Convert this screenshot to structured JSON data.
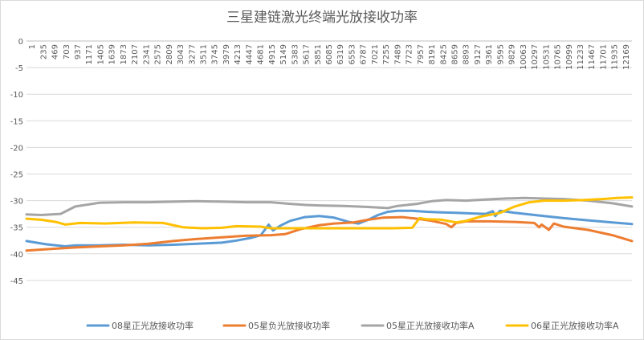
{
  "chart_data": {
    "type": "line",
    "title": "三星建链激光终端光放接收功率",
    "xlabel": "",
    "ylabel": "",
    "ylim": [
      -50,
      0
    ],
    "yticks": [
      0,
      -5,
      -10,
      -15,
      -20,
      -25,
      -30,
      -35,
      -40,
      -45
    ],
    "x_range": [
      1,
      12400
    ],
    "x_tick_labels": [
      "1",
      "235",
      "469",
      "703",
      "937",
      "1171",
      "1405",
      "1639",
      "1873",
      "2107",
      "2341",
      "2575",
      "2809",
      "3043",
      "3277",
      "3511",
      "3745",
      "3979",
      "4213",
      "4447",
      "4681",
      "4915",
      "5149",
      "5383",
      "5617",
      "5851",
      "6085",
      "6319",
      "6553",
      "6787",
      "7021",
      "7255",
      "7489",
      "7723",
      "7957",
      "8191",
      "8425",
      "8659",
      "8893",
      "9127",
      "9361",
      "9595",
      "9829",
      "10063",
      "10297",
      "10531",
      "10765",
      "10999",
      "11233",
      "11467",
      "11701",
      "11935",
      "12169"
    ],
    "x_axis_position": "top",
    "legend_position": "bottom",
    "grid": true,
    "series": [
      {
        "name": "08星正光放接收功率",
        "color": "#5b9bd5",
        "points": [
          [
            1,
            -37.6
          ],
          [
            400,
            -38.2
          ],
          [
            800,
            -38.6
          ],
          [
            1000,
            -38.4
          ],
          [
            1500,
            -38.4
          ],
          [
            2000,
            -38.3
          ],
          [
            2500,
            -38.4
          ],
          [
            3000,
            -38.3
          ],
          [
            3500,
            -38.1
          ],
          [
            4000,
            -37.9
          ],
          [
            4300,
            -37.5
          ],
          [
            4600,
            -37.0
          ],
          [
            4800,
            -36.5
          ],
          [
            4960,
            -34.5
          ],
          [
            5050,
            -35.6
          ],
          [
            5200,
            -34.7
          ],
          [
            5400,
            -33.8
          ],
          [
            5700,
            -33.1
          ],
          [
            6000,
            -32.9
          ],
          [
            6300,
            -33.2
          ],
          [
            6600,
            -34.0
          ],
          [
            6800,
            -34.3
          ],
          [
            7000,
            -33.6
          ],
          [
            7200,
            -32.7
          ],
          [
            7400,
            -32.1
          ],
          [
            7600,
            -31.9
          ],
          [
            7900,
            -31.9
          ],
          [
            8200,
            -32.1
          ],
          [
            8500,
            -32.2
          ],
          [
            8800,
            -32.3
          ],
          [
            9100,
            -32.4
          ],
          [
            9400,
            -32.5
          ],
          [
            9550,
            -32.0
          ],
          [
            9600,
            -32.9
          ],
          [
            9700,
            -31.9
          ],
          [
            10000,
            -32.3
          ],
          [
            10500,
            -32.8
          ],
          [
            11000,
            -33.3
          ],
          [
            11500,
            -33.7
          ],
          [
            12000,
            -34.1
          ],
          [
            12400,
            -34.4
          ]
        ]
      },
      {
        "name": "05星负光放接收功率",
        "color": "#ed7d31",
        "points": [
          [
            1,
            -39.4
          ],
          [
            500,
            -39.1
          ],
          [
            1000,
            -38.8
          ],
          [
            1500,
            -38.6
          ],
          [
            2000,
            -38.4
          ],
          [
            2500,
            -38.1
          ],
          [
            3000,
            -37.6
          ],
          [
            3500,
            -37.2
          ],
          [
            4000,
            -36.9
          ],
          [
            4500,
            -36.6
          ],
          [
            5000,
            -36.5
          ],
          [
            5300,
            -36.3
          ],
          [
            5600,
            -35.4
          ],
          [
            6000,
            -34.6
          ],
          [
            6300,
            -34.3
          ],
          [
            6700,
            -34.1
          ],
          [
            7000,
            -33.6
          ],
          [
            7300,
            -33.2
          ],
          [
            7700,
            -33.1
          ],
          [
            8000,
            -33.4
          ],
          [
            8300,
            -33.8
          ],
          [
            8600,
            -34.4
          ],
          [
            8700,
            -35.0
          ],
          [
            8800,
            -34.2
          ],
          [
            9000,
            -33.9
          ],
          [
            9500,
            -33.9
          ],
          [
            10000,
            -34.0
          ],
          [
            10400,
            -34.2
          ],
          [
            10500,
            -35.0
          ],
          [
            10550,
            -34.5
          ],
          [
            10700,
            -35.5
          ],
          [
            10800,
            -34.3
          ],
          [
            11000,
            -34.9
          ],
          [
            11500,
            -35.5
          ],
          [
            12000,
            -36.5
          ],
          [
            12400,
            -37.6
          ]
        ]
      },
      {
        "name": "05星正光放接收功率A",
        "color": "#a5a5a5",
        "points": [
          [
            1,
            -32.6
          ],
          [
            300,
            -32.7
          ],
          [
            700,
            -32.5
          ],
          [
            1000,
            -31.1
          ],
          [
            1500,
            -30.4
          ],
          [
            2000,
            -30.3
          ],
          [
            2500,
            -30.3
          ],
          [
            3000,
            -30.2
          ],
          [
            3500,
            -30.1
          ],
          [
            4000,
            -30.2
          ],
          [
            4500,
            -30.3
          ],
          [
            5000,
            -30.3
          ],
          [
            5400,
            -30.6
          ],
          [
            5700,
            -30.8
          ],
          [
            6000,
            -30.9
          ],
          [
            6500,
            -31.0
          ],
          [
            7000,
            -31.2
          ],
          [
            7400,
            -31.4
          ],
          [
            7600,
            -31.0
          ],
          [
            8000,
            -30.6
          ],
          [
            8300,
            -30.1
          ],
          [
            8600,
            -29.9
          ],
          [
            9000,
            -30.0
          ],
          [
            9400,
            -29.8
          ],
          [
            9800,
            -29.6
          ],
          [
            10200,
            -29.5
          ],
          [
            10600,
            -29.6
          ],
          [
            11000,
            -29.7
          ],
          [
            11500,
            -30.0
          ],
          [
            12000,
            -30.5
          ],
          [
            12400,
            -31.1
          ]
        ]
      },
      {
        "name": "06星正光放接收功率A",
        "color": "#ffc000",
        "points": [
          [
            1,
            -33.4
          ],
          [
            300,
            -33.6
          ],
          [
            600,
            -34.0
          ],
          [
            800,
            -34.5
          ],
          [
            1100,
            -34.2
          ],
          [
            1600,
            -34.3
          ],
          [
            2200,
            -34.1
          ],
          [
            2800,
            -34.2
          ],
          [
            3200,
            -35.0
          ],
          [
            3600,
            -35.2
          ],
          [
            4000,
            -35.1
          ],
          [
            4300,
            -34.8
          ],
          [
            4800,
            -34.9
          ],
          [
            5000,
            -35.2
          ],
          [
            5500,
            -35.2
          ],
          [
            6000,
            -35.2
          ],
          [
            6500,
            -35.2
          ],
          [
            7000,
            -35.2
          ],
          [
            7500,
            -35.2
          ],
          [
            7900,
            -35.1
          ],
          [
            8050,
            -33.3
          ],
          [
            8200,
            -33.5
          ],
          [
            8500,
            -33.6
          ],
          [
            8800,
            -34.1
          ],
          [
            9000,
            -33.8
          ],
          [
            9300,
            -33.0
          ],
          [
            9700,
            -32.3
          ],
          [
            10000,
            -31.1
          ],
          [
            10300,
            -30.3
          ],
          [
            10600,
            -30.0
          ],
          [
            11000,
            -30.0
          ],
          [
            11400,
            -29.9
          ],
          [
            11800,
            -29.7
          ],
          [
            12100,
            -29.5
          ],
          [
            12400,
            -29.4
          ]
        ]
      }
    ]
  }
}
